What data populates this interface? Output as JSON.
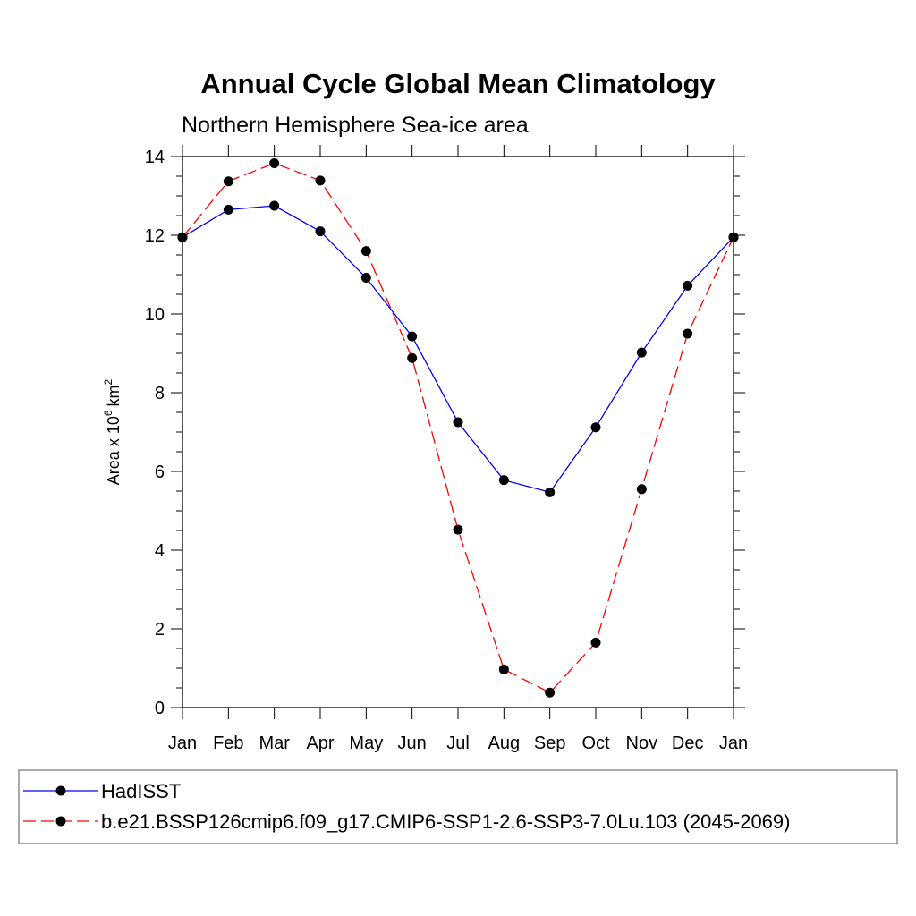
{
  "chart_data": {
    "type": "line",
    "title": "Annual Cycle Global Mean Climatology",
    "subtitle": "Northern Hemisphere Sea-ice area",
    "xlabel": "",
    "ylabel": "Area x 10",
    "ylabel_exponent": "6",
    "ylabel_unit": "km",
    "ylabel_unit_exponent": "2",
    "categories": [
      "Jan",
      "Feb",
      "Mar",
      "Apr",
      "May",
      "Jun",
      "Jul",
      "Aug",
      "Sep",
      "Oct",
      "Nov",
      "Dec",
      "Jan"
    ],
    "ylim": [
      0,
      14
    ],
    "yticks": [
      0,
      2,
      4,
      6,
      8,
      10,
      12,
      14
    ],
    "grid": false,
    "legend_position": "bottom",
    "series": [
      {
        "name": "HadISST",
        "color": "#0000ff",
        "dash": "solid",
        "values": [
          11.95,
          12.65,
          12.75,
          12.1,
          10.92,
          9.43,
          7.25,
          5.78,
          5.47,
          7.12,
          9.02,
          10.72,
          11.95
        ]
      },
      {
        "name": "b.e21.BSSP126cmip6.f09_g17.CMIP6-SSP1-2.6-SSP3-7.0Lu.103 (2045-2069)",
        "color": "#ff0000",
        "dash": "dashed",
        "values": [
          11.95,
          13.37,
          13.83,
          13.39,
          11.6,
          8.88,
          4.52,
          0.97,
          0.38,
          1.65,
          5.55,
          9.5,
          11.95
        ]
      }
    ]
  }
}
